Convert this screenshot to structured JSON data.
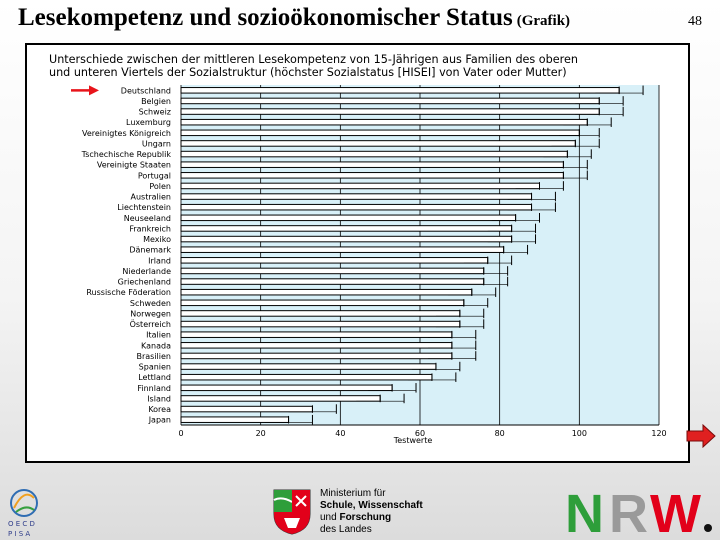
{
  "slide": {
    "title": "Lesekompetenz und sozioökonomischer Status",
    "title_suffix": "(Grafik)",
    "page_number": "48"
  },
  "chart_data": {
    "type": "bar",
    "title_line1": "Unterschiede zwischen der mittleren Lesekompetenz von 15-Jährigen aus Familien des oberen",
    "title_line2": "und unteren Viertels der Sozialstruktur (höchster Sozialstatus [HISEI] von Vater oder Mutter)",
    "xlabel": "Testwerte",
    "xlim": [
      0,
      120
    ],
    "xticks": [
      "0",
      "20",
      "40",
      "60",
      "80",
      "100",
      "120"
    ],
    "grid": true,
    "highlight_category": "Deutschland",
    "categories": [
      "Deutschland",
      "Belgien",
      "Schweiz",
      "Luxemburg",
      "Vereinigtes Königreich",
      "Ungarn",
      "Tschechische Republik",
      "Vereinigte Staaten",
      "Portugal",
      "Polen",
      "Australien",
      "Liechtenstein",
      "Neuseeland",
      "Frankreich",
      "Mexiko",
      "Dänemark",
      "Irland",
      "Niederlande",
      "Griechenland",
      "Russische Föderation",
      "Schweden",
      "Norwegen",
      "Österreich",
      "Italien",
      "Kanada",
      "Brasilien",
      "Spanien",
      "Lettland",
      "Finnland",
      "Island",
      "Korea",
      "Japan"
    ],
    "values": [
      110,
      105,
      105,
      102,
      100,
      99,
      97,
      96,
      96,
      90,
      88,
      88,
      84,
      83,
      83,
      81,
      77,
      76,
      76,
      73,
      71,
      70,
      70,
      68,
      68,
      68,
      64,
      63,
      53,
      50,
      33,
      27
    ],
    "errors": [
      6,
      6,
      6,
      6,
      5,
      6,
      6,
      6,
      6,
      6,
      6,
      6,
      6,
      6,
      6,
      6,
      6,
      6,
      6,
      6,
      6,
      6,
      6,
      6,
      6,
      6,
      6,
      6,
      6,
      6,
      6,
      6
    ]
  },
  "footer": {
    "pisa_text": "OECD PISA",
    "ministry_line1": "Ministerium für",
    "ministry_line2": "Schule, Wissenschaft",
    "ministry_line3_a": "und",
    "ministry_line3_b": "Forschung",
    "ministry_line4": "des Landes",
    "nrw_logo_text": "NRW."
  },
  "colors": {
    "bar_fill": "#ffffff",
    "bar_stroke": "#000000",
    "grid_line": "#000000",
    "plot_bg": "#d8f0f8",
    "highlight_arrow": "#e8141b",
    "nrw_green": "#2e9e3a",
    "nrw_red": "#e2001a",
    "next_arrow": "#e02020"
  }
}
